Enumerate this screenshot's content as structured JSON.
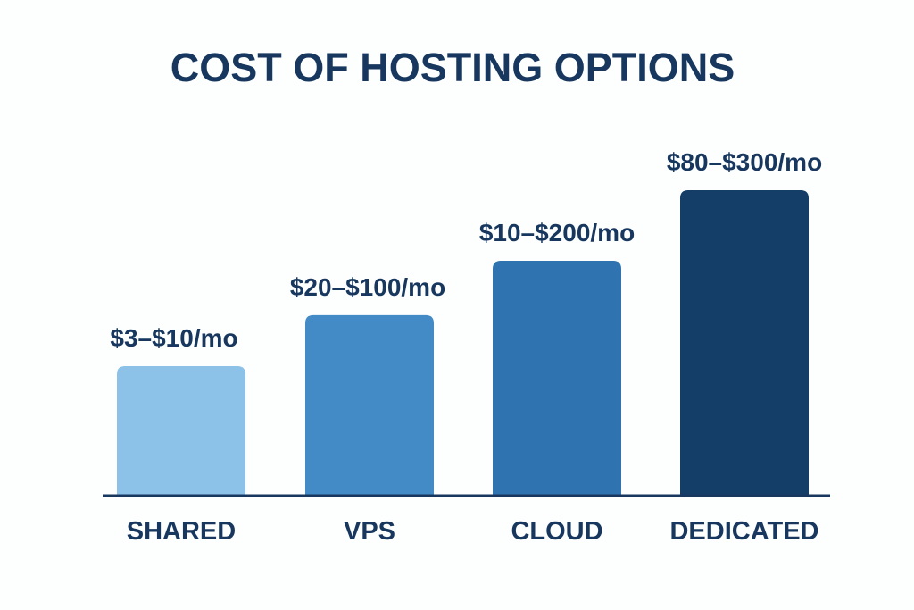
{
  "chart_data": {
    "type": "bar",
    "title": "COST OF HOSTING OPTIONS",
    "xlabel": "",
    "ylabel": "",
    "grid": false,
    "legend": "none",
    "categories": [
      "SHARED",
      "VPS",
      "CLOUD",
      "DEDICATED"
    ],
    "value_labels": [
      "$3–$10/mo",
      "$20–$100/mo",
      "$10–$200/mo",
      "$80–$300/mo"
    ],
    "ranges_usd_per_month": [
      [
        3,
        10
      ],
      [
        20,
        100
      ],
      [
        10,
        200
      ],
      [
        80,
        300
      ]
    ],
    "relative_levels": [
      0.424,
      0.591,
      0.769,
      1.0
    ],
    "colors": [
      "#8cc2e8",
      "#428bc6",
      "#2f74b0",
      "#143d68"
    ],
    "text_color": "#17375e",
    "axis_color": "#17375e"
  }
}
